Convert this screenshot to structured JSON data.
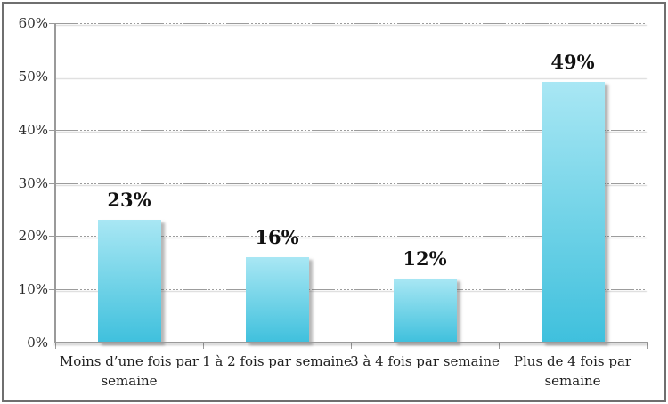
{
  "chart_data": {
    "type": "bar",
    "title": "",
    "xlabel": "",
    "ylabel": "",
    "categories": [
      "Moins d’une fois par\nsemaine",
      "1 à 2 fois par semaine",
      "3 à 4 fois par semaine",
      "Plus de 4 fois par\nsemaine"
    ],
    "values": [
      23,
      16,
      12,
      49
    ],
    "value_labels": [
      "23%",
      "16%",
      "12%",
      "49%"
    ],
    "ylim": [
      0,
      60
    ],
    "y_tick_step": 10,
    "y_tick_labels": [
      "0%",
      "10%",
      "20%",
      "30%",
      "40%",
      "50%",
      "60%"
    ],
    "grid": true,
    "legend": false,
    "colors": {
      "bar_gradient_top": "#a9e7f4",
      "bar_gradient_bottom": "#3fc0dd",
      "axis": "#9a9a9a",
      "gridline": "#9c9c9c",
      "value_label_text": "#111111",
      "tick_label_text": "#2a2a2a",
      "frame_border": "#6f6f6f",
      "background": "#ffffff"
    }
  }
}
